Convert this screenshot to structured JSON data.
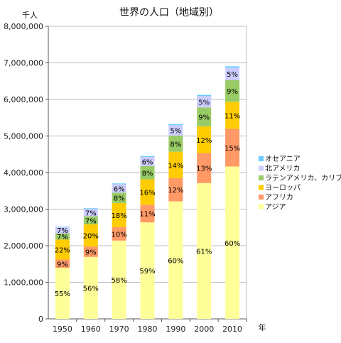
{
  "chart_data": {
    "type": "bar",
    "stacked": true,
    "title": "世界の人口（地域別）",
    "ylabel": "千人",
    "xlabel": "年",
    "ylim": [
      0,
      8000000
    ],
    "yticks": [
      "0",
      "1,000,000",
      "2,000,000",
      "3,000,000",
      "4,000,000",
      "5,000,000",
      "6,000,000",
      "7,000,000",
      "8,000,000"
    ],
    "grid": true,
    "legend_position": "right",
    "categories": [
      "1950",
      "1960",
      "1970",
      "1980",
      "1990",
      "2000",
      "2010"
    ],
    "series": [
      {
        "name": "アジア",
        "color": "#ffff99",
        "values": [
          1395000,
          1694000,
          2140000,
          2638000,
          3213000,
          3713000,
          4165000
        ],
        "labels": [
          "55%",
          "56%",
          "58%",
          "59%",
          "60%",
          "61%",
          "60%"
        ]
      },
      {
        "name": "アフリカ",
        "color": "#ff9966",
        "values": [
          228000,
          285000,
          368000,
          482000,
          635000,
          819000,
          1031000
        ],
        "labels": [
          "9%",
          "9%",
          "10%",
          "11%",
          "12%",
          "13%",
          "15%"
        ]
      },
      {
        "name": "ヨーロッパ",
        "color": "#ffcc00",
        "values": [
          547000,
          605000,
          657000,
          694000,
          721000,
          727000,
          738000
        ],
        "labels": [
          "22%",
          "20%",
          "18%",
          "16%",
          "14%",
          "12%",
          "11%"
        ]
      },
      {
        "name": "ラテンアメリカ、カリブ",
        "color": "#99cc66",
        "values": [
          167000,
          220000,
          286000,
          362000,
          443000,
          521000,
          590000
        ],
        "labels": [
          "7%",
          "7%",
          "8%",
          "8%",
          "8%",
          "9%",
          "9%"
        ]
      },
      {
        "name": "北アメリカ",
        "color": "#ccccff",
        "values": [
          172000,
          204000,
          231000,
          254000,
          283000,
          313000,
          345000
        ],
        "labels": [
          "7%",
          "7%",
          "6%",
          "6%",
          "5%",
          "5%",
          "5%"
        ]
      },
      {
        "name": "オセアニア",
        "color": "#66ccff",
        "values": [
          13000,
          16000,
          20000,
          23000,
          27000,
          31000,
          37000
        ],
        "labels": [
          "",
          "",
          "",
          "",
          "",
          "",
          ""
        ]
      }
    ]
  }
}
